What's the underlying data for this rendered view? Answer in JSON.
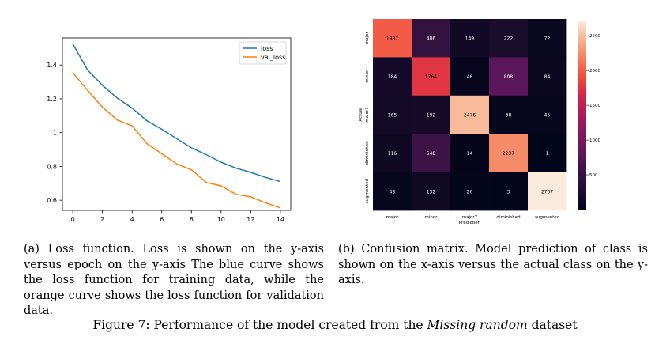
{
  "chart_data": [
    {
      "type": "line",
      "title": "",
      "xlabel": "",
      "ylabel": "",
      "x": [
        0,
        1,
        2,
        3,
        4,
        5,
        6,
        7,
        8,
        9,
        10,
        11,
        12,
        13,
        14
      ],
      "xticks": [
        0,
        2,
        4,
        6,
        8,
        10,
        12,
        14
      ],
      "yticks": [
        0.6,
        0.8,
        1.0,
        1.2,
        1.4
      ],
      "xlim": [
        -0.7,
        14.7
      ],
      "ylim": [
        0.54,
        1.56
      ],
      "legend_position": "top-right",
      "grid": false,
      "series": [
        {
          "name": "loss",
          "color": "#1f77b4",
          "values": [
            1.525,
            1.37,
            1.28,
            1.205,
            1.145,
            1.07,
            1.02,
            0.965,
            0.91,
            0.87,
            0.825,
            0.79,
            0.765,
            0.735,
            0.71
          ]
        },
        {
          "name": "val_loss",
          "color": "#ff7f0e",
          "values": [
            1.355,
            1.25,
            1.15,
            1.075,
            1.04,
            0.935,
            0.875,
            0.815,
            0.78,
            0.705,
            0.685,
            0.635,
            0.62,
            0.585,
            0.555
          ]
        }
      ]
    },
    {
      "type": "heatmap",
      "title": "",
      "xlabel": "Prediction",
      "ylabel": "Actual",
      "x_categories": [
        "major",
        "minor",
        "major7",
        "diminished",
        "augmented"
      ],
      "y_categories": [
        "major",
        "minor",
        "major7",
        "diminished",
        "augmented"
      ],
      "values": [
        [
          1987,
          486,
          149,
          222,
          72
        ],
        [
          184,
          1764,
          46,
          808,
          84
        ],
        [
          165,
          192,
          2476,
          38,
          45
        ],
        [
          116,
          548,
          14,
          2237,
          1
        ],
        [
          48,
          132,
          26,
          3,
          2707
        ]
      ],
      "colorbar_ticks": [
        500,
        1000,
        1500,
        2000,
        2500
      ],
      "colorbar_range": [
        0,
        2707
      ],
      "colormap": "rocket"
    }
  ],
  "captions": {
    "a": "(a) Loss function. Loss is shown on the y-axis versus epoch on the y-axis The blue curve shows the loss function for training data, while the orange curve shows the loss function for validation data.",
    "b": "(b) Confusion matrix. Model prediction of class is shown on the x-axis versus the actual class on the y-axis.",
    "figure_prefix": "Figure 7: Performance of the model created from the ",
    "figure_emph": "Missing random",
    "figure_suffix": " dataset"
  }
}
